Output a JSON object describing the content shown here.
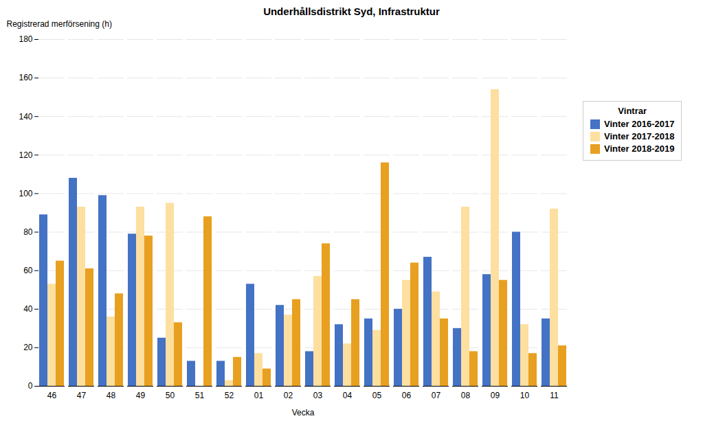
{
  "chart_data": {
    "type": "bar",
    "title": "Underhållsdistrikt Syd,  Infrastruktur",
    "xlabel": "Vecka",
    "ylabel": "Registrerad merförsening (h)",
    "legend_title": "Vintrar",
    "categories": [
      "46",
      "47",
      "48",
      "49",
      "50",
      "51",
      "52",
      "01",
      "02",
      "03",
      "04",
      "05",
      "06",
      "07",
      "08",
      "09",
      "10",
      "11"
    ],
    "series": [
      {
        "name": "Vinter 2016-2017",
        "color": "#4472C4",
        "values": [
          89,
          108,
          99,
          79,
          25,
          13,
          13,
          53,
          42,
          18,
          32,
          35,
          40,
          67,
          30,
          58,
          80,
          35
        ]
      },
      {
        "name": "Vinter 2017-2018",
        "color": "#FDDFA0",
        "values": [
          53,
          93,
          36,
          93,
          95,
          0,
          3,
          17,
          37,
          57,
          22,
          29,
          55,
          49,
          93,
          154,
          32,
          92
        ]
      },
      {
        "name": "Vinter 2018-2019",
        "color": "#E8A020",
        "values": [
          65,
          61,
          48,
          78,
          33,
          88,
          15,
          9,
          45,
          74,
          45,
          116,
          64,
          35,
          18,
          55,
          17,
          21
        ]
      }
    ],
    "ylim": [
      0,
      180
    ],
    "yticks": [
      0,
      20,
      40,
      60,
      80,
      100,
      120,
      140,
      160,
      180
    ],
    "grid": true,
    "legend": "right"
  }
}
